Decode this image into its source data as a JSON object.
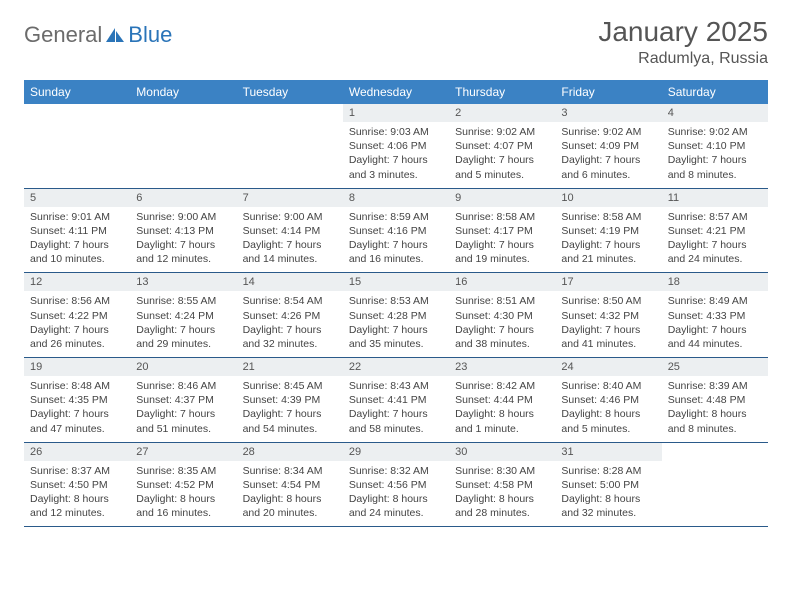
{
  "logo": {
    "text1": "General",
    "text2": "Blue"
  },
  "title": "January 2025",
  "location": "Radumlya, Russia",
  "colors": {
    "header_bg": "#3b82c4",
    "header_text": "#ffffff",
    "daynum_bg": "#eceff1",
    "border": "#2a5a8a",
    "logo_gray": "#6b6b6b",
    "logo_blue": "#2a74b8"
  },
  "weekdays": [
    "Sunday",
    "Monday",
    "Tuesday",
    "Wednesday",
    "Thursday",
    "Friday",
    "Saturday"
  ],
  "weeks": [
    [
      null,
      null,
      null,
      {
        "n": "1",
        "sr": "9:03 AM",
        "ss": "4:06 PM",
        "dl": "7 hours and 3 minutes."
      },
      {
        "n": "2",
        "sr": "9:02 AM",
        "ss": "4:07 PM",
        "dl": "7 hours and 5 minutes."
      },
      {
        "n": "3",
        "sr": "9:02 AM",
        "ss": "4:09 PM",
        "dl": "7 hours and 6 minutes."
      },
      {
        "n": "4",
        "sr": "9:02 AM",
        "ss": "4:10 PM",
        "dl": "7 hours and 8 minutes."
      }
    ],
    [
      {
        "n": "5",
        "sr": "9:01 AM",
        "ss": "4:11 PM",
        "dl": "7 hours and 10 minutes."
      },
      {
        "n": "6",
        "sr": "9:00 AM",
        "ss": "4:13 PM",
        "dl": "7 hours and 12 minutes."
      },
      {
        "n": "7",
        "sr": "9:00 AM",
        "ss": "4:14 PM",
        "dl": "7 hours and 14 minutes."
      },
      {
        "n": "8",
        "sr": "8:59 AM",
        "ss": "4:16 PM",
        "dl": "7 hours and 16 minutes."
      },
      {
        "n": "9",
        "sr": "8:58 AM",
        "ss": "4:17 PM",
        "dl": "7 hours and 19 minutes."
      },
      {
        "n": "10",
        "sr": "8:58 AM",
        "ss": "4:19 PM",
        "dl": "7 hours and 21 minutes."
      },
      {
        "n": "11",
        "sr": "8:57 AM",
        "ss": "4:21 PM",
        "dl": "7 hours and 24 minutes."
      }
    ],
    [
      {
        "n": "12",
        "sr": "8:56 AM",
        "ss": "4:22 PM",
        "dl": "7 hours and 26 minutes."
      },
      {
        "n": "13",
        "sr": "8:55 AM",
        "ss": "4:24 PM",
        "dl": "7 hours and 29 minutes."
      },
      {
        "n": "14",
        "sr": "8:54 AM",
        "ss": "4:26 PM",
        "dl": "7 hours and 32 minutes."
      },
      {
        "n": "15",
        "sr": "8:53 AM",
        "ss": "4:28 PM",
        "dl": "7 hours and 35 minutes."
      },
      {
        "n": "16",
        "sr": "8:51 AM",
        "ss": "4:30 PM",
        "dl": "7 hours and 38 minutes."
      },
      {
        "n": "17",
        "sr": "8:50 AM",
        "ss": "4:32 PM",
        "dl": "7 hours and 41 minutes."
      },
      {
        "n": "18",
        "sr": "8:49 AM",
        "ss": "4:33 PM",
        "dl": "7 hours and 44 minutes."
      }
    ],
    [
      {
        "n": "19",
        "sr": "8:48 AM",
        "ss": "4:35 PM",
        "dl": "7 hours and 47 minutes."
      },
      {
        "n": "20",
        "sr": "8:46 AM",
        "ss": "4:37 PM",
        "dl": "7 hours and 51 minutes."
      },
      {
        "n": "21",
        "sr": "8:45 AM",
        "ss": "4:39 PM",
        "dl": "7 hours and 54 minutes."
      },
      {
        "n": "22",
        "sr": "8:43 AM",
        "ss": "4:41 PM",
        "dl": "7 hours and 58 minutes."
      },
      {
        "n": "23",
        "sr": "8:42 AM",
        "ss": "4:44 PM",
        "dl": "8 hours and 1 minute."
      },
      {
        "n": "24",
        "sr": "8:40 AM",
        "ss": "4:46 PM",
        "dl": "8 hours and 5 minutes."
      },
      {
        "n": "25",
        "sr": "8:39 AM",
        "ss": "4:48 PM",
        "dl": "8 hours and 8 minutes."
      }
    ],
    [
      {
        "n": "26",
        "sr": "8:37 AM",
        "ss": "4:50 PM",
        "dl": "8 hours and 12 minutes."
      },
      {
        "n": "27",
        "sr": "8:35 AM",
        "ss": "4:52 PM",
        "dl": "8 hours and 16 minutes."
      },
      {
        "n": "28",
        "sr": "8:34 AM",
        "ss": "4:54 PM",
        "dl": "8 hours and 20 minutes."
      },
      {
        "n": "29",
        "sr": "8:32 AM",
        "ss": "4:56 PM",
        "dl": "8 hours and 24 minutes."
      },
      {
        "n": "30",
        "sr": "8:30 AM",
        "ss": "4:58 PM",
        "dl": "8 hours and 28 minutes."
      },
      {
        "n": "31",
        "sr": "8:28 AM",
        "ss": "5:00 PM",
        "dl": "8 hours and 32 minutes."
      },
      null
    ]
  ],
  "labels": {
    "sunrise": "Sunrise:",
    "sunset": "Sunset:",
    "daylight": "Daylight:"
  }
}
